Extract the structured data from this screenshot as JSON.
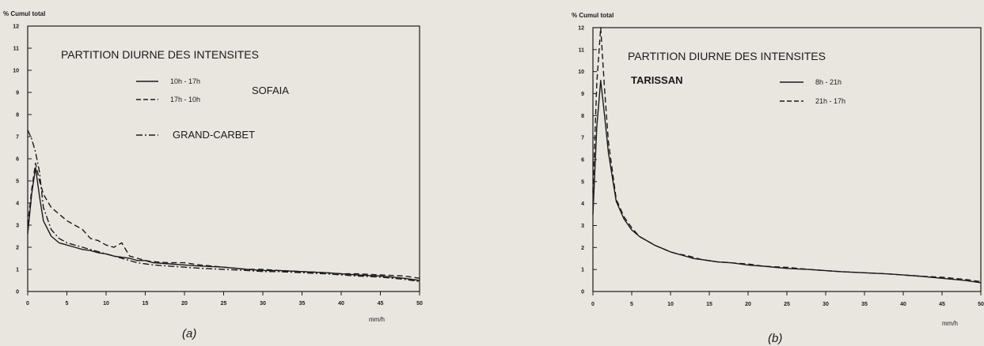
{
  "chart_data": [
    {
      "type": "line",
      "panel_label": "(a)",
      "ylabel": "% Cumul total",
      "xlabel": "mm/h",
      "xlim": [
        0,
        50
      ],
      "ylim": [
        0,
        12
      ],
      "x_ticks": [
        "0",
        "5",
        "10",
        "15",
        "20",
        "25",
        "30",
        "35",
        "40",
        "45",
        "50"
      ],
      "y_ticks": [
        "0",
        "1",
        "2",
        "3",
        "4",
        "5",
        "6",
        "7",
        "8",
        "9",
        "10",
        "11",
        "12"
      ],
      "title": "PARTITION DIURNE DES INTENSITES",
      "station_label": "SOFAIA",
      "extra_label": "GRAND-CARBET",
      "grid": false,
      "legend": [
        {
          "label": "10h - 17h",
          "style": "solid"
        },
        {
          "label": "17h - 10h",
          "style": "dashed"
        },
        {
          "label": "GRAND-CARBET",
          "style": "dashdot"
        }
      ],
      "series": [
        {
          "name": "10h - 17h",
          "style": "solid",
          "x": [
            0,
            0.5,
            1,
            1.5,
            2,
            3,
            4,
            5,
            6,
            7,
            8,
            9,
            10,
            11,
            12,
            13,
            14,
            15,
            16,
            18,
            20,
            22,
            25,
            28,
            30,
            32,
            35,
            38,
            40,
            42,
            45,
            48,
            50
          ],
          "y": [
            2.6,
            4.4,
            5.6,
            4.3,
            3.2,
            2.5,
            2.2,
            2.1,
            2.0,
            1.9,
            1.85,
            1.75,
            1.7,
            1.6,
            1.55,
            1.5,
            1.4,
            1.4,
            1.3,
            1.25,
            1.2,
            1.15,
            1.1,
            1.0,
            0.95,
            0.95,
            0.9,
            0.85,
            0.8,
            0.75,
            0.7,
            0.6,
            0.5
          ]
        },
        {
          "name": "17h - 10h",
          "style": "dashed",
          "x": [
            0,
            0.5,
            1,
            1.5,
            2,
            3,
            4,
            5,
            6,
            7,
            8,
            9,
            10,
            11,
            12,
            13,
            14,
            15,
            16,
            18,
            20,
            22,
            25,
            28,
            30,
            32,
            35,
            38,
            40,
            42,
            45,
            48,
            50
          ],
          "y": [
            3.0,
            4.6,
            5.8,
            5.0,
            4.4,
            3.8,
            3.5,
            3.2,
            3.0,
            2.8,
            2.4,
            2.3,
            2.1,
            2.0,
            2.2,
            1.6,
            1.5,
            1.4,
            1.35,
            1.3,
            1.3,
            1.2,
            1.1,
            1.0,
            1.0,
            0.95,
            0.9,
            0.85,
            0.8,
            0.8,
            0.75,
            0.7,
            0.6
          ]
        },
        {
          "name": "GRAND-CARBET",
          "style": "dashdot",
          "x": [
            0,
            0.5,
            1,
            1.5,
            2,
            3,
            4,
            5,
            6,
            7,
            8,
            9,
            10,
            11,
            12,
            13,
            14,
            15,
            16,
            18,
            20,
            22,
            25,
            28,
            30,
            32,
            35,
            38,
            40,
            42,
            45,
            48,
            50
          ],
          "y": [
            7.3,
            6.9,
            6.3,
            5.4,
            3.8,
            2.8,
            2.4,
            2.2,
            2.1,
            2.0,
            1.9,
            1.8,
            1.7,
            1.6,
            1.5,
            1.4,
            1.3,
            1.25,
            1.2,
            1.15,
            1.1,
            1.05,
            1.0,
            0.95,
            0.9,
            0.9,
            0.85,
            0.8,
            0.75,
            0.7,
            0.65,
            0.55,
            0.45
          ]
        }
      ]
    },
    {
      "type": "line",
      "panel_label": "(b)",
      "ylabel": "% Cumul total",
      "xlabel": "mm/h",
      "xlim": [
        0,
        50
      ],
      "ylim": [
        0,
        12
      ],
      "x_ticks": [
        "0",
        "5",
        "10",
        "15",
        "20",
        "25",
        "30",
        "35",
        "40",
        "45",
        "50"
      ],
      "y_ticks": [
        "0",
        "1",
        "2",
        "3",
        "4",
        "5",
        "6",
        "7",
        "8",
        "9",
        "10",
        "11",
        "12"
      ],
      "title": "PARTITION DIURNE DES INTENSITES",
      "station_label": "TARISSAN",
      "grid": false,
      "legend": [
        {
          "label": "8h - 21h",
          "style": "solid"
        },
        {
          "label": "21h - 17h",
          "style": "dashed"
        }
      ],
      "series": [
        {
          "name": "8h - 21h",
          "style": "solid",
          "x": [
            0,
            0.5,
            1,
            1.5,
            2,
            3,
            4,
            5,
            6,
            7,
            8,
            9,
            10,
            11,
            12,
            13,
            14,
            15,
            16,
            18,
            20,
            22,
            25,
            28,
            30,
            32,
            35,
            38,
            40,
            42,
            45,
            48,
            50
          ],
          "y": [
            3.5,
            7.5,
            9.6,
            8.0,
            6.3,
            4.1,
            3.3,
            2.8,
            2.5,
            2.3,
            2.1,
            1.95,
            1.8,
            1.7,
            1.6,
            1.5,
            1.45,
            1.4,
            1.35,
            1.3,
            1.2,
            1.15,
            1.05,
            1.0,
            0.95,
            0.9,
            0.85,
            0.8,
            0.75,
            0.7,
            0.6,
            0.5,
            0.4
          ]
        },
        {
          "name": "21h - 17h",
          "style": "dashed",
          "x": [
            0,
            0.5,
            1,
            1.5,
            2,
            3,
            4,
            5,
            6,
            7,
            8,
            9,
            10,
            11,
            12,
            13,
            14,
            15,
            16,
            18,
            20,
            22,
            25,
            28,
            30,
            32,
            35,
            38,
            40,
            42,
            45,
            48,
            50
          ],
          "y": [
            4.5,
            9.5,
            12.0,
            9.2,
            6.8,
            4.2,
            3.4,
            2.9,
            2.5,
            2.3,
            2.1,
            1.95,
            1.8,
            1.7,
            1.65,
            1.55,
            1.45,
            1.4,
            1.35,
            1.3,
            1.25,
            1.15,
            1.1,
            1.0,
            0.95,
            0.9,
            0.85,
            0.8,
            0.75,
            0.7,
            0.65,
            0.55,
            0.45
          ]
        }
      ]
    }
  ]
}
